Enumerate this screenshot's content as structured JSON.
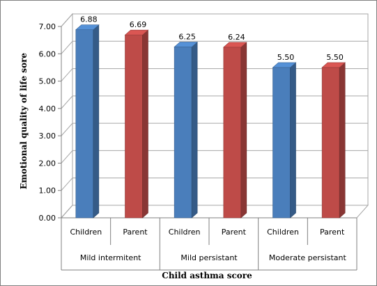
{
  "chart_data": {
    "type": "bar",
    "categories": [
      "Children",
      "Parent",
      "Children",
      "Parent",
      "Children",
      "Parent"
    ],
    "groups": [
      {
        "label": "Mild intermitent",
        "categories": [
          "Children",
          "Parent"
        ]
      },
      {
        "label": "Mild persistant",
        "categories": [
          "Children",
          "Parent"
        ]
      },
      {
        "label": "Moderate persistant",
        "categories": [
          "Children",
          "Parent"
        ]
      }
    ],
    "values": [
      6.88,
      6.69,
      6.25,
      6.24,
      5.5,
      5.5
    ],
    "data_labels": [
      "6.88",
      "6.69",
      "6.25",
      "6.24",
      "5.50",
      "5.50"
    ],
    "bar_colors": [
      "#4a7ebb",
      "#be4b48",
      "#4a7ebb",
      "#be4b48",
      "#4a7ebb",
      "#be4b48"
    ],
    "ylim": [
      0,
      7
    ],
    "yticks": [
      "0.00",
      "1.00",
      "2.00",
      "3.00",
      "4.00",
      "5.00",
      "6.00",
      "7.00"
    ],
    "xlabel": "Child asthma score",
    "ylabel": "Emotional quality of life sore",
    "grid": true,
    "style": "3d-column"
  }
}
